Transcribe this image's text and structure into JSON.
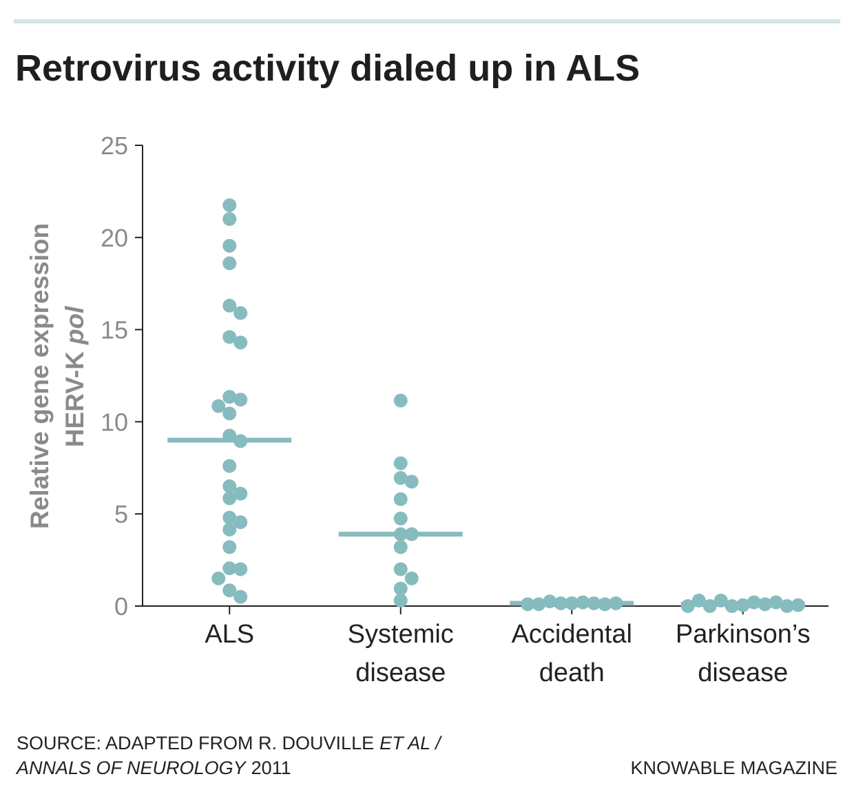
{
  "chart_data": {
    "type": "dot",
    "title": "Retrovirus activity dialed up in ALS",
    "ylabel": {
      "line1": "Relative gene expression",
      "line2": "HERV-K",
      "line2_italic": "pol"
    },
    "categories": [
      "ALS",
      "Systemic disease",
      "Accidental death",
      "Parkinson’s disease"
    ],
    "values": [
      [
        21.75,
        21.0,
        19.55,
        18.6,
        16.3,
        15.9,
        14.6,
        14.3,
        11.35,
        11.2,
        10.85,
        10.45,
        9.25,
        8.95,
        7.6,
        6.5,
        6.1,
        5.85,
        4.8,
        4.55,
        4.15,
        3.2,
        2.05,
        2.0,
        1.5,
        0.85,
        0.5
      ],
      [
        11.15,
        7.75,
        6.95,
        6.75,
        5.8,
        4.75,
        3.9,
        3.9,
        3.2,
        2.0,
        1.5,
        0.95,
        0.3
      ],
      [
        0.15,
        0.2,
        0.15,
        0.15,
        0.25,
        0.1,
        0.1,
        0.15,
        0.1
      ],
      [
        0.05,
        0.2,
        0.0,
        0.1,
        0.3,
        0.2,
        0.0,
        0.0,
        0.3,
        0.05,
        0.0
      ]
    ],
    "medians": [
      9.0,
      3.9,
      0.15,
      0.1
    ],
    "color": "#87bcbf",
    "ylim": [
      0,
      25
    ],
    "yticks": [
      0,
      5,
      10,
      15,
      20,
      25
    ]
  },
  "source": {
    "prefix": "SOURCE: ADAPTED FROM R. DOUVILLE",
    "et_al": "ET AL /",
    "journal": "ANNALS OF NEUROLOGY",
    "year": "2011"
  },
  "credit": "KNOWABLE MAGAZINE"
}
